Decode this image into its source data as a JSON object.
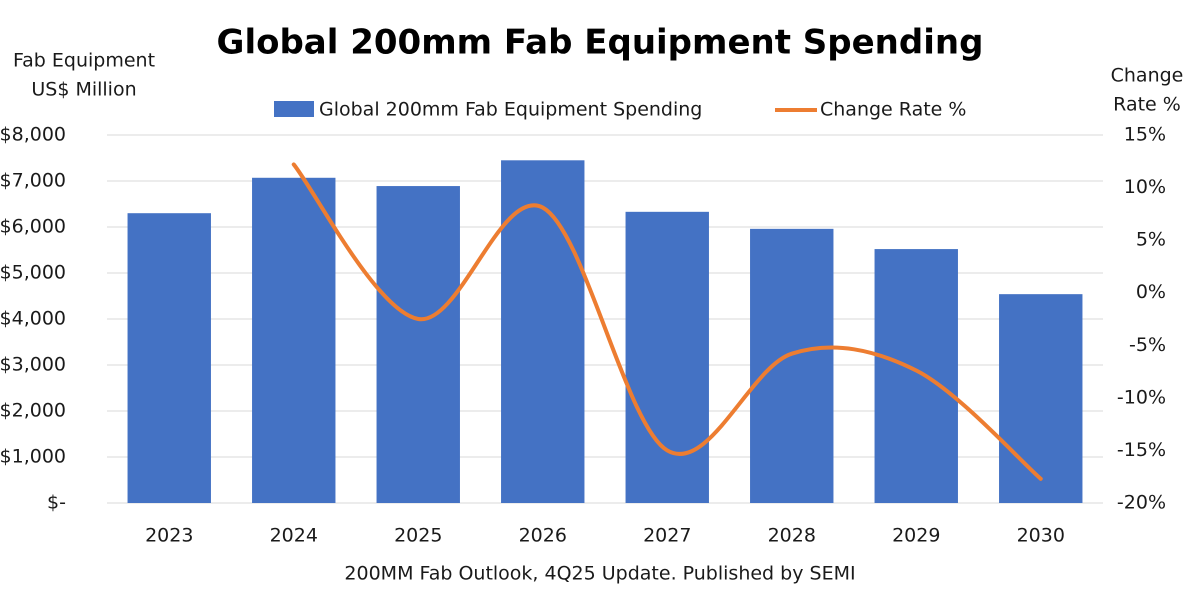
{
  "chart_data": {
    "type": "bar_line",
    "title": "Global 200mm Fab Equipment Spending",
    "ylabel": [
      "Fab Equipment",
      "US$ Million"
    ],
    "y2label": [
      "Change",
      "Rate %"
    ],
    "xlabel": "200MM Fab Outlook, 4Q25 Update. Published by SEMI",
    "categories": [
      "2023",
      "2024",
      "2025",
      "2026",
      "2027",
      "2028",
      "2029",
      "2030"
    ],
    "series": [
      {
        "name": "Global 200mm Fab Equipment Spending",
        "type": "bar",
        "color": "#4472c4",
        "values": [
          6300,
          7070,
          6890,
          7450,
          6330,
          5960,
          5520,
          4540
        ]
      },
      {
        "name": "Change Rate %",
        "type": "line",
        "axis": "y2",
        "color": "#ed7d31",
        "values": [
          null,
          12.2,
          -2.5,
          8.1,
          -15.0,
          -5.8,
          -7.4,
          -17.7
        ]
      }
    ],
    "ylim": [
      0,
      8000
    ],
    "yticks": [
      {
        "value": 0,
        "label": "$-"
      },
      {
        "value": 1000,
        "label": "$1,000"
      },
      {
        "value": 2000,
        "label": "$2,000"
      },
      {
        "value": 3000,
        "label": "$3,000"
      },
      {
        "value": 4000,
        "label": "$4,000"
      },
      {
        "value": 5000,
        "label": "$5,000"
      },
      {
        "value": 6000,
        "label": "$6,000"
      },
      {
        "value": 7000,
        "label": "$7,000"
      },
      {
        "value": 8000,
        "label": "$8,000"
      }
    ],
    "y2lim": [
      -20,
      15
    ],
    "y2ticks": [
      {
        "value": -20,
        "label": "-20%"
      },
      {
        "value": -15,
        "label": "-15%"
      },
      {
        "value": -10,
        "label": "-10%"
      },
      {
        "value": -5,
        "label": "-5%"
      },
      {
        "value": 0,
        "label": "0%"
      },
      {
        "value": 5,
        "label": "5%"
      },
      {
        "value": 10,
        "label": "10%"
      },
      {
        "value": 15,
        "label": "15%"
      }
    ],
    "grid": true,
    "legend": "top"
  }
}
